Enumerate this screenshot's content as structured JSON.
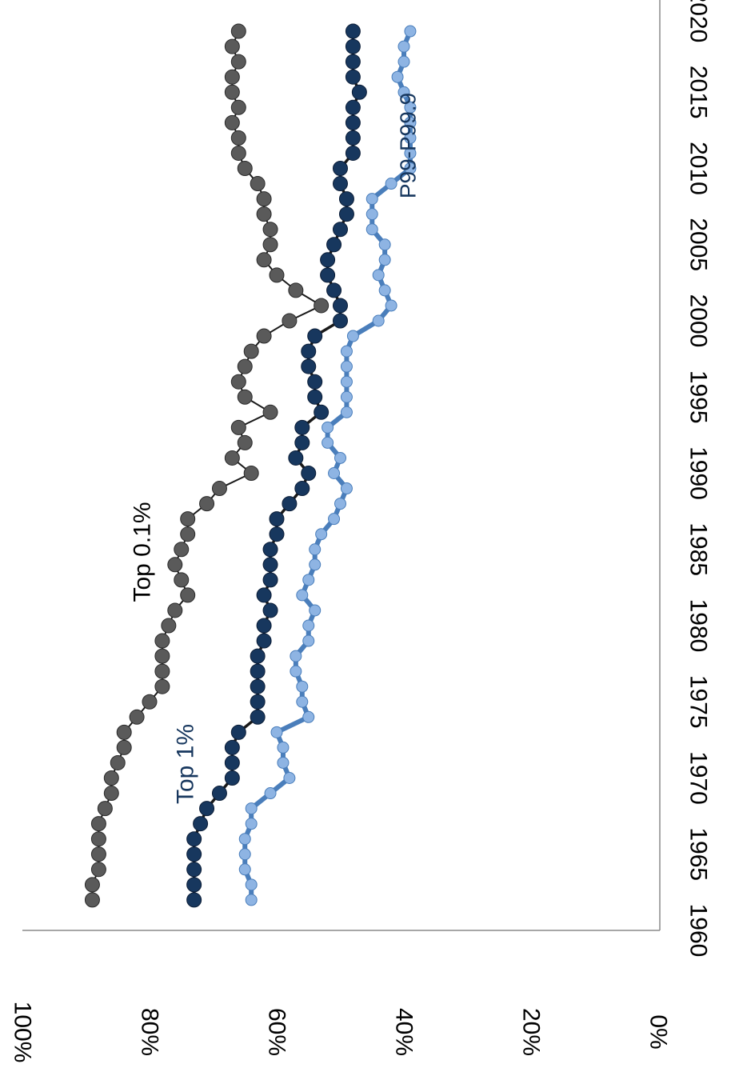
{
  "chart_data": {
    "type": "line",
    "orientation": "rotated-90-clockwise",
    "x_axis": {
      "label": "",
      "range": [
        1960,
        2020
      ],
      "ticks": [
        "1960",
        "1965",
        "1970",
        "1975",
        "1980",
        "1985",
        "1990",
        "1995",
        "2000",
        "2005",
        "2010",
        "2015",
        "2020"
      ]
    },
    "y_axis": {
      "label": "",
      "range": [
        0,
        100
      ],
      "unit": "%",
      "ticks": [
        "0%",
        "20%",
        "40%",
        "60%",
        "80%",
        "100%"
      ]
    },
    "grid": false,
    "legend": "inline-labels",
    "series": [
      {
        "name": "Top 0.1%",
        "color": "#5a5a5a",
        "line_color": "#1a1a1a",
        "x": [
          1962,
          1963,
          1964,
          1965,
          1966,
          1967,
          1968,
          1969,
          1970,
          1971,
          1972,
          1973,
          1974,
          1975,
          1976,
          1977,
          1978,
          1979,
          1980,
          1981,
          1982,
          1983,
          1984,
          1985,
          1986,
          1987,
          1988,
          1989,
          1990,
          1991,
          1992,
          1993,
          1994,
          1995,
          1996,
          1997,
          1998,
          1999,
          2000,
          2001,
          2002,
          2003,
          2004,
          2005,
          2006,
          2007,
          2008,
          2009,
          2010,
          2011,
          2012,
          2013,
          2014,
          2015,
          2016,
          2017,
          2018,
          2019
        ],
        "y": [
          89,
          89,
          88,
          88,
          88,
          88,
          87,
          86,
          86,
          85,
          84,
          84,
          82,
          80,
          78,
          78,
          78,
          78,
          77,
          76,
          74,
          75,
          76,
          75,
          74,
          74,
          71,
          69,
          64,
          67,
          65,
          66,
          61,
          65,
          66,
          65,
          64,
          62,
          58,
          53,
          57,
          60,
          62,
          61,
          61,
          62,
          62,
          63,
          65,
          66,
          66,
          67,
          66,
          67,
          67,
          66,
          67,
          66
        ],
        "data_label": "Top 0.1%"
      },
      {
        "name": "Top 1%",
        "color": "#17375e",
        "line_color": "#1a1a1a",
        "x": [
          1962,
          1963,
          1964,
          1965,
          1966,
          1967,
          1968,
          1969,
          1970,
          1971,
          1972,
          1973,
          1974,
          1975,
          1976,
          1977,
          1978,
          1979,
          1980,
          1981,
          1982,
          1983,
          1984,
          1985,
          1986,
          1987,
          1988,
          1989,
          1990,
          1991,
          1992,
          1993,
          1994,
          1995,
          1996,
          1997,
          1998,
          1999,
          2000,
          2001,
          2002,
          2003,
          2004,
          2005,
          2006,
          2007,
          2008,
          2009,
          2010,
          2011,
          2012,
          2013,
          2014,
          2015,
          2016,
          2017,
          2018,
          2019
        ],
        "y": [
          73,
          73,
          73,
          73,
          73,
          72,
          71,
          69,
          67,
          67,
          67,
          66,
          63,
          63,
          63,
          63,
          63,
          62,
          62,
          61,
          62,
          61,
          61,
          61,
          60,
          60,
          58,
          56,
          55,
          57,
          56,
          56,
          53,
          54,
          54,
          55,
          55,
          54,
          50,
          50,
          51,
          52,
          52,
          51,
          50,
          49,
          49,
          50,
          50,
          48,
          48,
          48,
          48,
          47,
          48,
          48,
          48,
          48
        ],
        "data_label": "Top 1%"
      },
      {
        "name": "P99-P99.9",
        "color": "#8eb4e3",
        "line_color": "#4a7ebb",
        "x": [
          1962,
          1963,
          1964,
          1965,
          1966,
          1967,
          1968,
          1969,
          1970,
          1971,
          1972,
          1973,
          1974,
          1975,
          1976,
          1977,
          1978,
          1979,
          1980,
          1981,
          1982,
          1983,
          1984,
          1985,
          1986,
          1987,
          1988,
          1989,
          1990,
          1991,
          1992,
          1993,
          1994,
          1995,
          1996,
          1997,
          1998,
          1999,
          2000,
          2001,
          2002,
          2003,
          2004,
          2005,
          2006,
          2007,
          2008,
          2009,
          2010,
          2011,
          2012,
          2013,
          2014,
          2015,
          2016,
          2017,
          2018,
          2019
        ],
        "y": [
          64,
          64,
          65,
          65,
          65,
          64,
          64,
          61,
          58,
          59,
          59,
          60,
          55,
          56,
          56,
          57,
          57,
          55,
          55,
          54,
          56,
          55,
          54,
          54,
          53,
          51,
          50,
          49,
          51,
          50,
          52,
          52,
          49,
          49,
          49,
          49,
          49,
          48,
          44,
          42,
          43,
          44,
          43,
          43,
          45,
          45,
          45,
          42,
          39,
          39,
          39,
          39,
          39,
          40,
          41,
          40,
          40,
          39
        ],
        "data_label": "P99-P99.9"
      }
    ]
  },
  "style": {
    "axis_color": "#8a8a8a",
    "tick_label_color": "#000000",
    "label_dark_color": "#000000",
    "label_blue_color": "#17375e"
  }
}
